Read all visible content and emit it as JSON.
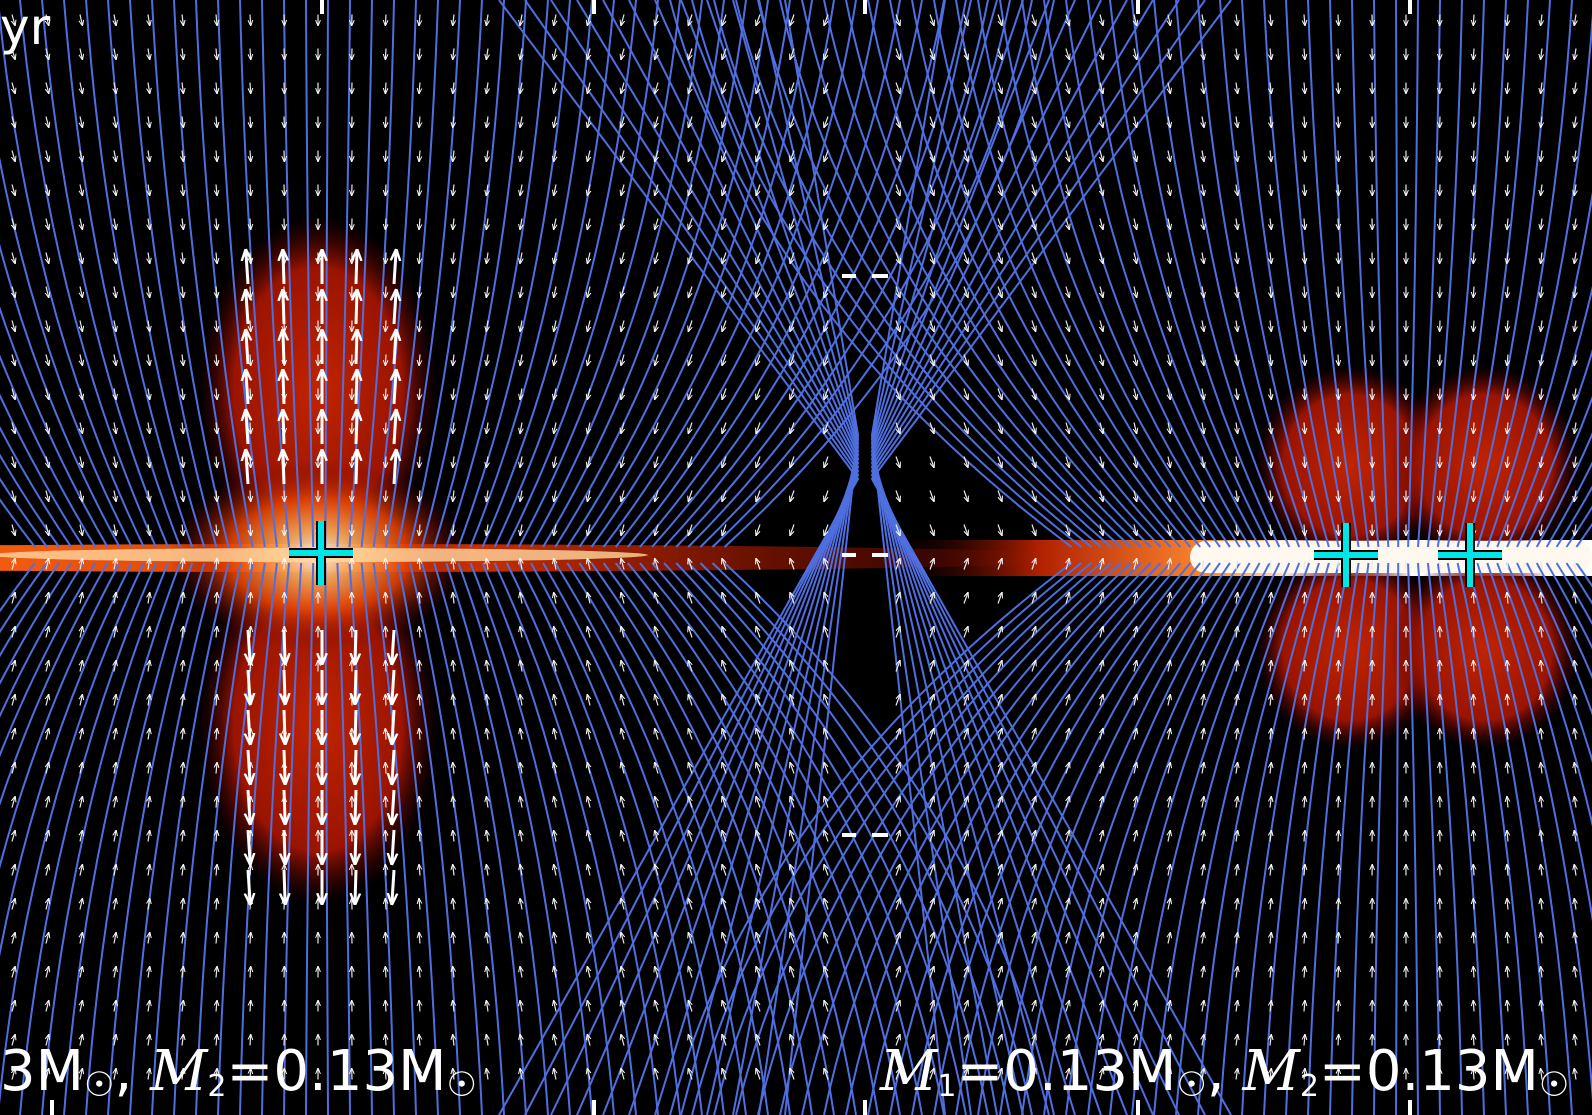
{
  "time_label": "yr",
  "left_panel": {
    "label_prefix": "3M",
    "m2_symbol": "M",
    "m2_subscript": "2",
    "m2_value": "=0.13M"
  },
  "right_panel": {
    "m1_symbol": "M",
    "m1_subscript": "1",
    "m1_value": "=0.13M",
    "m2_symbol": "M",
    "m2_subscript": "2",
    "m2_value": "=0.13M"
  },
  "sun_symbol": "☉",
  "separator": ",",
  "colors": {
    "background": "#000000",
    "field_lines": "#4f6fe0",
    "velocity_arrows": "#ffffff",
    "density_low": "#8a0a00",
    "density_high": "#ffffff",
    "sink_marker": "#00e5e5"
  }
}
